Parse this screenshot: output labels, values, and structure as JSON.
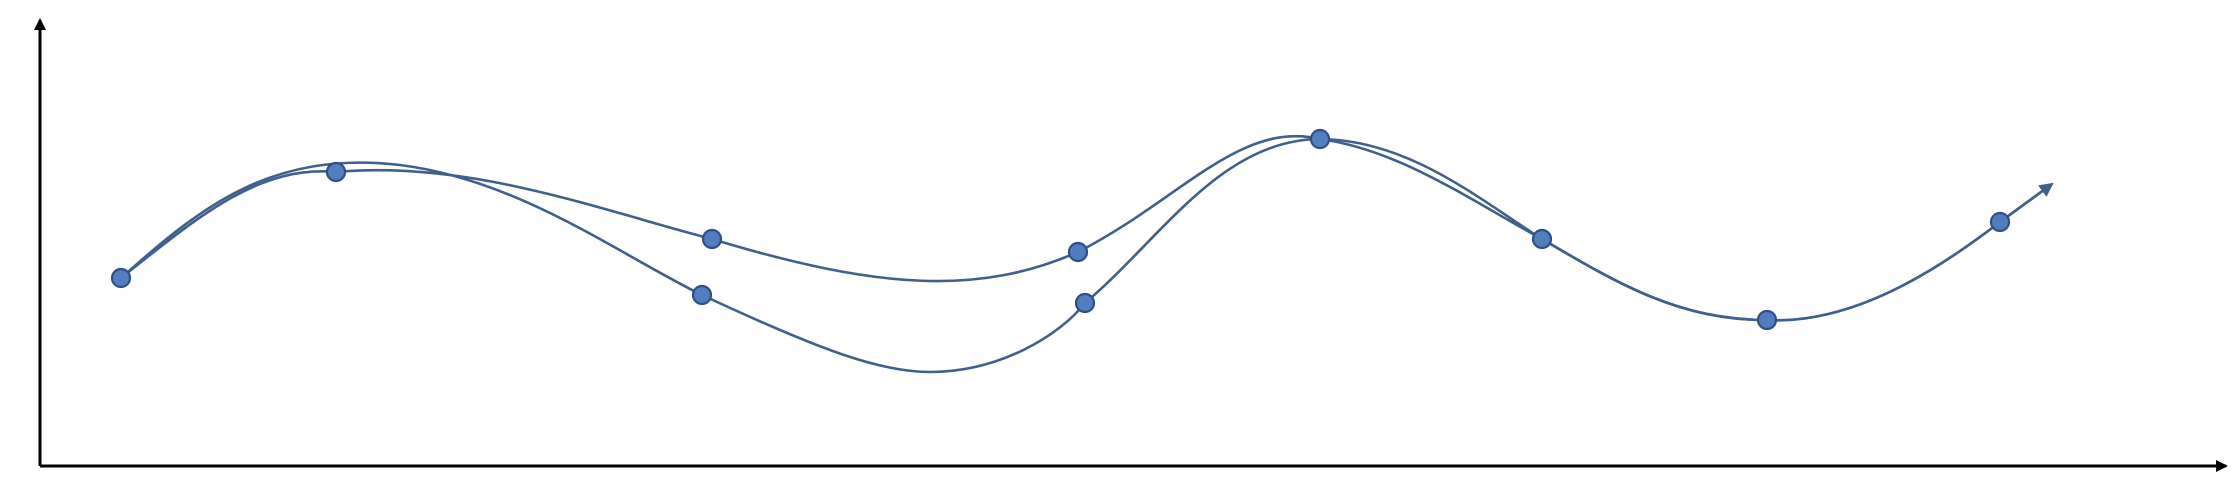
{
  "diagram": {
    "kind": "two-curves-through-points-with-axes",
    "axes": {
      "x_arrow": true,
      "y_arrow": true,
      "labels": []
    },
    "curves": [
      {
        "name": "upper-path",
        "end_arrow": true,
        "passes_through_points": [
          "p1",
          "p2",
          "p3u",
          "p4u",
          "p5",
          "p6",
          "p7",
          "p8"
        ]
      },
      {
        "name": "lower-path",
        "end_arrow": true,
        "passes_through_points": [
          "p1",
          "p2",
          "p3l",
          "p4l",
          "p5",
          "p6",
          "p7",
          "p8"
        ]
      }
    ],
    "points": [
      {
        "id": "p1"
      },
      {
        "id": "p2"
      },
      {
        "id": "p3u"
      },
      {
        "id": "p3l"
      },
      {
        "id": "p4u"
      },
      {
        "id": "p4l"
      },
      {
        "id": "p5"
      },
      {
        "id": "p6"
      },
      {
        "id": "p7"
      },
      {
        "id": "p8"
      }
    ],
    "colors": {
      "axis": "#000000",
      "curve": "#3F5F8C",
      "point_fill": "#4F7FC0",
      "point_stroke": "#2F4F7F"
    }
  }
}
